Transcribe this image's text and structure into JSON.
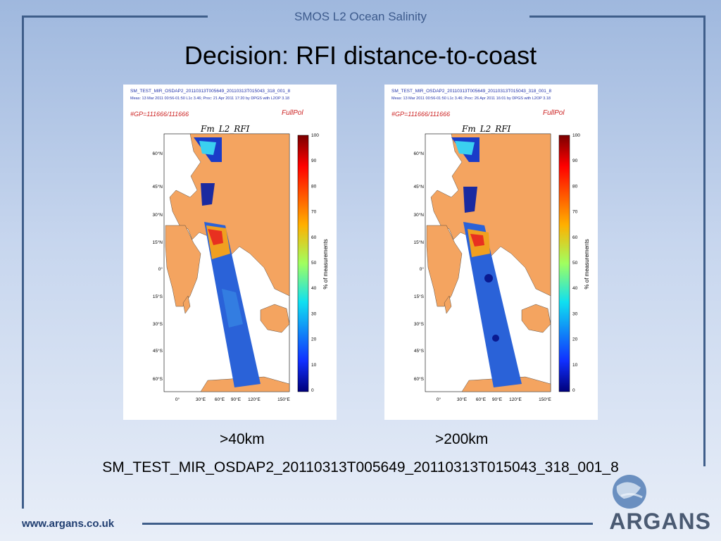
{
  "header": "SMOS L2 Ocean Salinity",
  "title": "Decision: RFI distance-to-coast",
  "panels": [
    {
      "file": "SM_TEST_MIR_OSDAP2_20110313T005649_20110313T015043_318_001_8",
      "meas": "Meas: 13 Mar 2011 00:56-01:50 L1c 3.46; Proc: 21 Apr 2011 17:20 by DPGS with L2OP 3.18",
      "gp": "#GP=111666/111666",
      "mode": "FullPol",
      "plot_title": "Fm_L2_RFI",
      "caption": ">40km"
    },
    {
      "file": "SM_TEST_MIR_OSDAP2_20110313T005649_20110313T015043_318_001_8",
      "meas": "Meas: 13 Mar 2011 00:56-01:50 L1c 3.46; Proc: 26 Apr 2011 16:01 by DPGS with L2OP 3.18",
      "gp": "#GP=111666/111666",
      "mode": "FullPol",
      "plot_title": "Fm_L2_RFI",
      "caption": ">200km"
    }
  ],
  "lat_labels": [
    "60°N",
    "45°N",
    "30°N",
    "15°N",
    "0°",
    "15°S",
    "30°S",
    "45°S",
    "60°S"
  ],
  "lon_labels": [
    "0°",
    "30°E",
    "60°E",
    "90°E",
    "120°E",
    "150°E"
  ],
  "colorbar_ticks": [
    "100",
    "90",
    "80",
    "70",
    "60",
    "50",
    "40",
    "30",
    "20",
    "10",
    "0"
  ],
  "colorbar_label": "% of measurements",
  "filename": "SM_TEST_MIR_OSDAP2_20110313T005649_20110313T015043_318_001_8",
  "footer_url": "www.argans.co.uk",
  "logo_text": "ARGANS",
  "colors": {
    "frame": "#3f5e8a",
    "land": "#f4a460",
    "ocean": "#ffffff"
  }
}
